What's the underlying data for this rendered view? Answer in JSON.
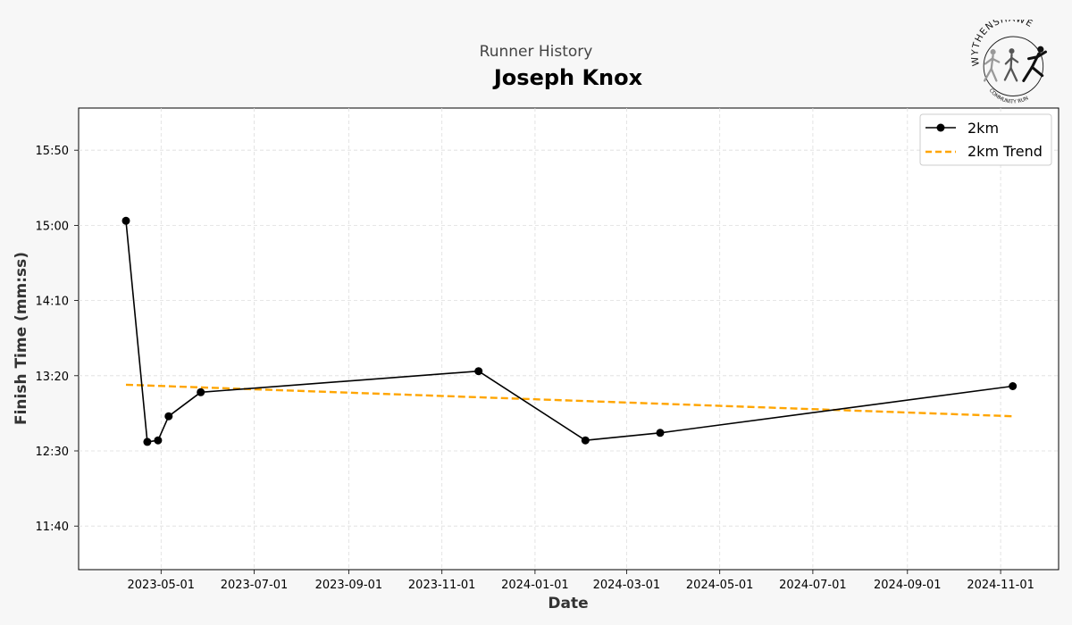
{
  "header": {
    "subtitle": "Runner History",
    "title": "Joseph Knox"
  },
  "logo": {
    "text": "WYTHENSHAWE",
    "subtext": "COMMUNITY RUN"
  },
  "colors": {
    "series": "#000000",
    "trend": "#FFA500",
    "background": "#f7f7f7",
    "plot_bg": "#ffffff",
    "grid": "#dddddd"
  },
  "chart_data": {
    "type": "line",
    "title": "Joseph Knox",
    "subtitle": "Runner History",
    "xlabel": "Date",
    "ylabel": "Finish Time (mm:ss)",
    "x_type": "date",
    "xlim": [
      "2023-03-08",
      "2024-12-09"
    ],
    "ylim": [
      "11:11",
      "16:18"
    ],
    "x_ticks": [
      "2023-05-01",
      "2023-07-01",
      "2023-09-01",
      "2023-11-01",
      "2024-01-01",
      "2024-03-01",
      "2024-05-01",
      "2024-07-01",
      "2024-09-01",
      "2024-11-01"
    ],
    "y_ticks": [
      "11:40",
      "12:30",
      "13:20",
      "14:10",
      "15:00",
      "15:50"
    ],
    "grid": true,
    "legend_position": "top-right",
    "series": [
      {
        "name": "2km",
        "style": "solid",
        "marker": "circle",
        "color": "#000000",
        "points": [
          {
            "x": "2023-04-08",
            "y": "15:03"
          },
          {
            "x": "2023-04-22",
            "y": "12:36"
          },
          {
            "x": "2023-04-29",
            "y": "12:37"
          },
          {
            "x": "2023-05-06",
            "y": "12:53"
          },
          {
            "x": "2023-05-27",
            "y": "13:09"
          },
          {
            "x": "2023-11-25",
            "y": "13:23"
          },
          {
            "x": "2024-02-03",
            "y": "12:37"
          },
          {
            "x": "2024-03-23",
            "y": "12:42"
          },
          {
            "x": "2024-11-09",
            "y": "13:13"
          }
        ]
      },
      {
        "name": "2km Trend",
        "style": "dashed",
        "color": "#FFA500",
        "points": [
          {
            "x": "2023-04-08",
            "y": "13:14"
          },
          {
            "x": "2024-11-09",
            "y": "12:53"
          }
        ]
      }
    ]
  }
}
